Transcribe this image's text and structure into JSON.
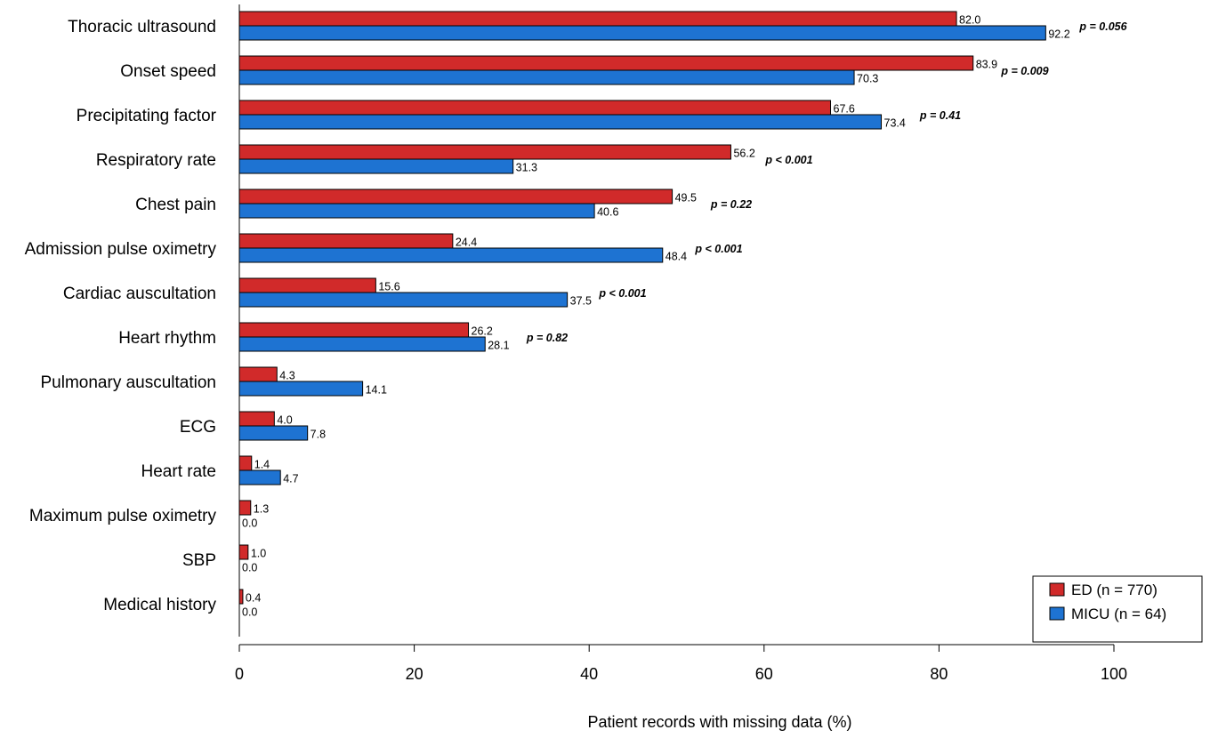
{
  "chart_data": {
    "type": "bar",
    "orientation": "horizontal",
    "title": "",
    "xlabel": "Patient records with missing data (%)",
    "ylabel": "",
    "xlim": [
      0,
      110
    ],
    "xticks": [
      0,
      20,
      40,
      60,
      80,
      100
    ],
    "legend_position": "bottom-right",
    "grid": false,
    "categories": [
      "Thoracic ultrasound",
      "Onset speed",
      "Precipitating factor",
      "Respiratory rate",
      "Chest pain",
      "Admission pulse oximetry",
      "Cardiac auscultation",
      "Heart rhythm",
      "Pulmonary auscultation",
      "ECG",
      "Heart rate",
      "Maximum pulse oximetry",
      "SBP",
      "Medical history"
    ],
    "series": [
      {
        "name": "ED (n = 770)",
        "color": "#d12a2a",
        "values": [
          82.0,
          83.9,
          67.6,
          56.2,
          49.5,
          24.4,
          15.6,
          26.2,
          4.3,
          4.0,
          1.4,
          1.3,
          1.0,
          0.4
        ],
        "labels": [
          "82.0",
          "83.9",
          "67.6",
          "56.2",
          "49.5",
          "24.4",
          "15.6",
          "26.2",
          "4.3",
          "4.0",
          "1.4",
          "1.3",
          "1.0",
          "0.4"
        ]
      },
      {
        "name": "MICU (n = 64)",
        "color": "#1e73d2",
        "values": [
          92.2,
          70.3,
          73.4,
          31.3,
          40.6,
          48.4,
          37.5,
          28.1,
          14.1,
          7.8,
          4.7,
          0.0,
          0.0,
          0.0
        ],
        "labels": [
          "92.2",
          "70.3",
          "73.4",
          "31.3",
          "40.6",
          "48.4",
          "37.5",
          "28.1",
          "14.1",
          "7.8",
          "4.7",
          "0.0",
          "0.0",
          "0.0"
        ]
      }
    ],
    "annotations": [
      "p = 0.056",
      "p = 0.009",
      "p = 0.41",
      "p < 0.001",
      "p = 0.22",
      "p < 0.001",
      "p < 0.001",
      "p = 0.82"
    ]
  }
}
